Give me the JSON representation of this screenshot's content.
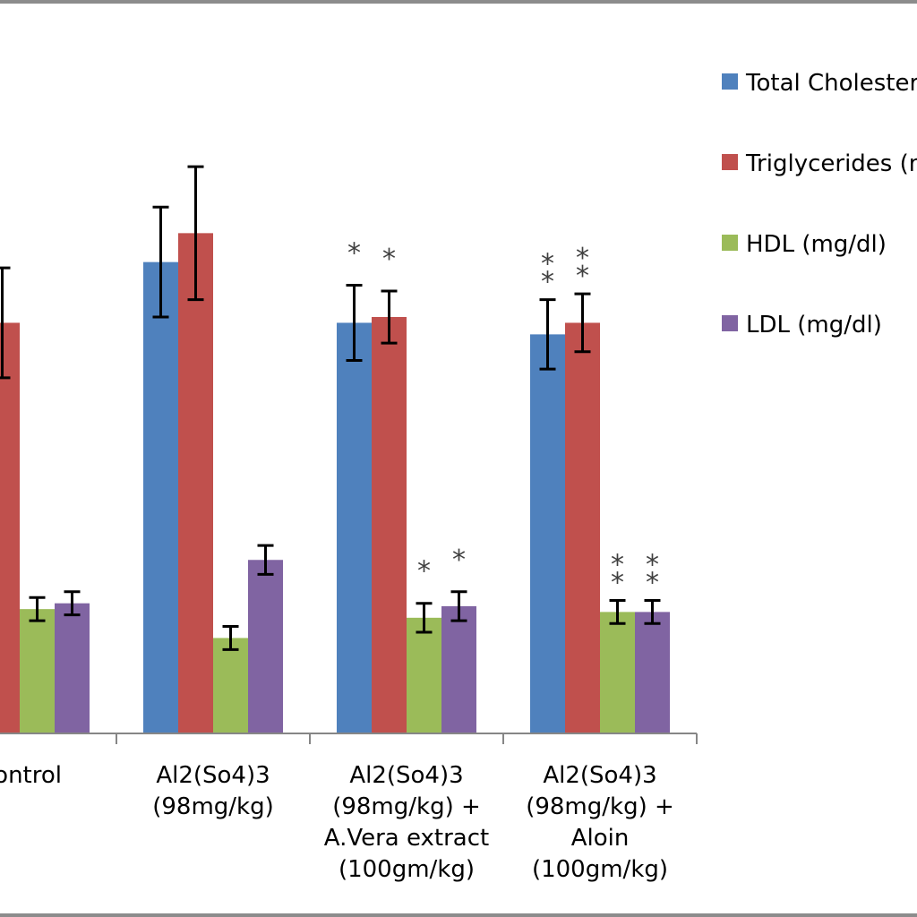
{
  "chart_data": {
    "type": "bar",
    "categories": [
      "Control",
      "Al2(So4)3 (98mg/kg)",
      "Al2(So4)3 (98mg/kg) + A.Vera extract (100gm/kg)",
      "Al2(So4)3 (98mg/kg) + Aloin (100gm/kg)"
    ],
    "category_lines": [
      [
        "Control"
      ],
      [
        "Al2(So4)3",
        "(98mg/kg)"
      ],
      [
        "Al2(So4)3",
        "(98mg/kg) +",
        "A.Vera extract",
        "(100gm/kg)"
      ],
      [
        "Al2(So4)3",
        "(98mg/kg) +",
        "Aloin",
        "(100gm/kg)"
      ]
    ],
    "series": [
      {
        "name": "Total Cholesterol (mg/dl)",
        "color": "#4f81bd",
        "values": [
          null,
          163,
          142,
          138
        ],
        "errors": [
          null,
          19,
          13,
          12
        ]
      },
      {
        "name": "Triglycerides (mg/dl)",
        "color": "#c0504d",
        "values": [
          142,
          173,
          144,
          142
        ],
        "errors": [
          19,
          23,
          9,
          10
        ]
      },
      {
        "name": "HDL (mg/dl)",
        "color": "#9bbb59",
        "values": [
          43,
          33,
          40,
          42
        ],
        "errors": [
          4,
          4,
          5,
          4
        ]
      },
      {
        "name": "LDL (mg/dl)",
        "color": "#8064a2",
        "values": [
          45,
          60,
          44,
          42
        ],
        "errors": [
          4,
          5,
          5,
          4
        ]
      }
    ],
    "significance": [
      {
        "series": 0,
        "category": 2,
        "text": "*"
      },
      {
        "series": 1,
        "category": 2,
        "text": "*"
      },
      {
        "series": 2,
        "category": 2,
        "text": "*"
      },
      {
        "series": 3,
        "category": 2,
        "text": "*"
      },
      {
        "series": 0,
        "category": 3,
        "text": "**"
      },
      {
        "series": 1,
        "category": 3,
        "text": "**"
      },
      {
        "series": 2,
        "category": 3,
        "text": "**"
      },
      {
        "series": 3,
        "category": 3,
        "text": "**"
      }
    ],
    "ylim": [
      0,
      240
    ],
    "legend_position": "right",
    "grid": false,
    "title": "",
    "xlabel": "",
    "ylabel": ""
  }
}
